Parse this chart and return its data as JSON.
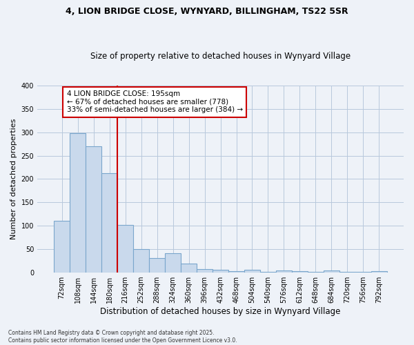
{
  "title": "4, LION BRIDGE CLOSE, WYNYARD, BILLINGHAM, TS22 5SR",
  "subtitle": "Size of property relative to detached houses in Wynyard Village",
  "xlabel": "Distribution of detached houses by size in Wynyard Village",
  "ylabel": "Number of detached properties",
  "bin_labels": [
    "72sqm",
    "108sqm",
    "144sqm",
    "180sqm",
    "216sqm",
    "252sqm",
    "288sqm",
    "324sqm",
    "360sqm",
    "396sqm",
    "432sqm",
    "468sqm",
    "504sqm",
    "540sqm",
    "576sqm",
    "612sqm",
    "648sqm",
    "684sqm",
    "720sqm",
    "756sqm",
    "792sqm"
  ],
  "bar_values": [
    110,
    298,
    270,
    213,
    101,
    50,
    31,
    41,
    19,
    7,
    5,
    2,
    6,
    1,
    4,
    3,
    1,
    4,
    1,
    1,
    3
  ],
  "bar_color": "#c9d9ec",
  "bar_edge_color": "#7aa6cc",
  "vline_color": "#cc0000",
  "annotation_text": "4 LION BRIDGE CLOSE: 195sqm\n← 67% of detached houses are smaller (778)\n33% of semi-detached houses are larger (384) →",
  "annotation_box_color": "#ffffff",
  "annotation_box_edge": "#cc0000",
  "ylim": [
    0,
    400
  ],
  "yticks": [
    0,
    50,
    100,
    150,
    200,
    250,
    300,
    350,
    400
  ],
  "footer": "Contains HM Land Registry data © Crown copyright and database right 2025.\nContains public sector information licensed under the Open Government Licence v3.0.",
  "bg_color": "#eef2f8",
  "plot_bg_color": "#eef2f8",
  "title_fontsize": 9,
  "subtitle_fontsize": 8.5
}
